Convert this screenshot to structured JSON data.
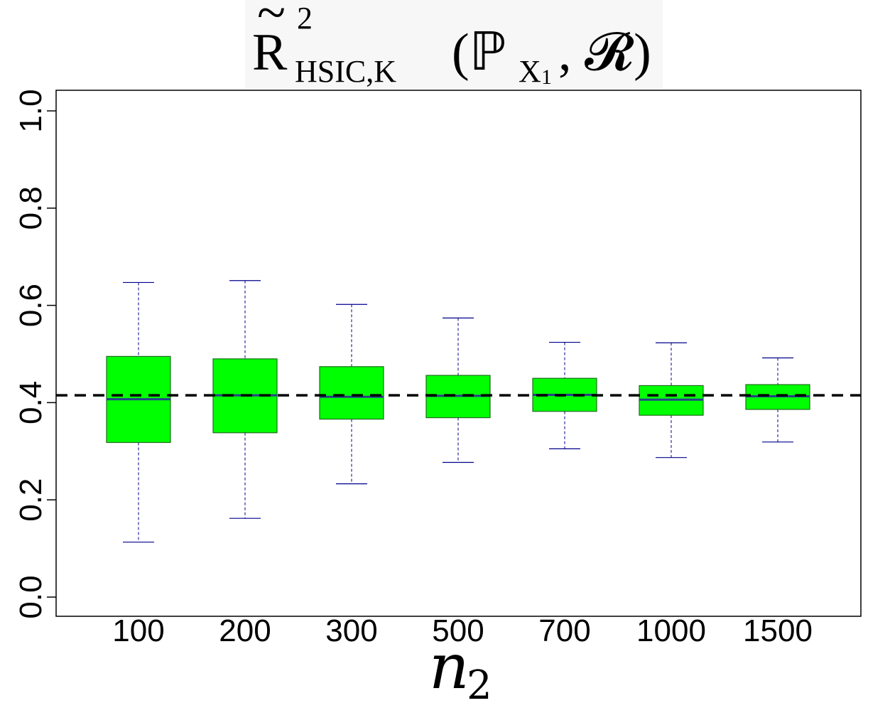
{
  "chart_data": {
    "type": "boxplot",
    "title": {
      "accent": "~",
      "symbol": "R",
      "superscript": "2",
      "subscript": "HSIC,K",
      "args": "(ℙ",
      "arg_sub": "X",
      "arg_sub_index": "1",
      "args_rest": ", 𝓡)"
    },
    "xlabel": {
      "main": "n",
      "sub": "2"
    },
    "ylabel": "",
    "ylim": [
      0.0,
      1.0
    ],
    "yticks": [
      "0.0",
      "0.2",
      "0.4",
      "0.6",
      "0.8",
      "1.0"
    ],
    "ytick_values": [
      0.0,
      0.2,
      0.4,
      0.6,
      0.8,
      1.0
    ],
    "categories": [
      "100",
      "200",
      "300",
      "500",
      "700",
      "1000",
      "1500"
    ],
    "boxes": [
      {
        "category": "100",
        "whisker_low": 0.113,
        "q1": 0.318,
        "median": 0.407,
        "q3": 0.495,
        "whisker_high": 0.647
      },
      {
        "category": "200",
        "whisker_low": 0.162,
        "q1": 0.338,
        "median": 0.415,
        "q3": 0.49,
        "whisker_high": 0.651
      },
      {
        "category": "300",
        "whisker_low": 0.233,
        "q1": 0.366,
        "median": 0.412,
        "q3": 0.474,
        "whisker_high": 0.602
      },
      {
        "category": "500",
        "whisker_low": 0.277,
        "q1": 0.369,
        "median": 0.414,
        "q3": 0.456,
        "whisker_high": 0.574
      },
      {
        "category": "700",
        "whisker_low": 0.305,
        "q1": 0.382,
        "median": 0.416,
        "q3": 0.45,
        "whisker_high": 0.524
      },
      {
        "category": "1000",
        "whisker_low": 0.287,
        "q1": 0.374,
        "median": 0.406,
        "q3": 0.435,
        "whisker_high": 0.523
      },
      {
        "category": "1500",
        "whisker_low": 0.319,
        "q1": 0.386,
        "median": 0.413,
        "q3": 0.437,
        "whisker_high": 0.492
      }
    ],
    "reference_line": {
      "y": 0.415,
      "style": "dashed",
      "color": "#000000"
    },
    "colors": {
      "box_fill": "#00ff00",
      "box_border": "#1a6d1a",
      "median": "#27408b",
      "whisker": "#00008b"
    },
    "grid": false,
    "legend": "none"
  }
}
